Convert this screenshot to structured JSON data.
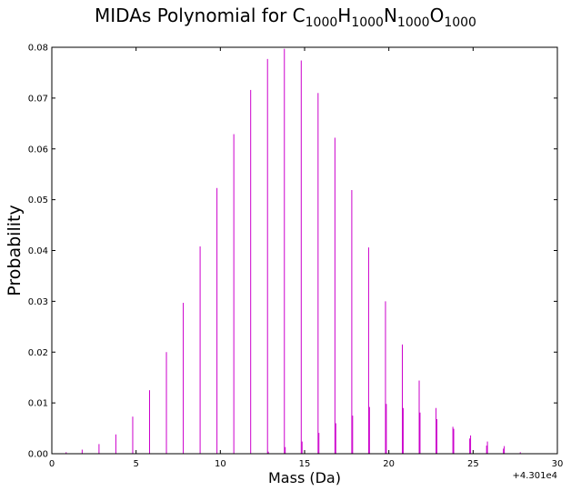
{
  "chart_data": {
    "type": "bar",
    "title": {
      "prefix": "MIDAs Polynomial for ",
      "parts": [
        {
          "el": "C",
          "n": "1000"
        },
        {
          "el": "H",
          "n": "1000"
        },
        {
          "el": "N",
          "n": "1000"
        },
        {
          "el": "O",
          "n": "1000"
        }
      ]
    },
    "xlabel": "Mass (Da)",
    "ylabel": "Probability",
    "x_offset_label": "+4.301e4",
    "xlim": [
      0,
      30
    ],
    "ylim": [
      0,
      0.08
    ],
    "xticks": [
      "0",
      "5",
      "10",
      "15",
      "20",
      "25",
      "30"
    ],
    "yticks": [
      "0.00",
      "0.01",
      "0.02",
      "0.03",
      "0.04",
      "0.05",
      "0.06",
      "0.07",
      "0.08"
    ],
    "grid": false,
    "bar_color": "#cc00cc",
    "x": [
      0.85,
      1.8,
      2.8,
      3.8,
      4.8,
      5.8,
      6.8,
      7.8,
      8.8,
      9.8,
      10.8,
      11.8,
      12.8,
      13.8,
      14.8,
      15.8,
      16.8,
      17.8,
      18.8,
      19.8,
      20.8,
      21.8,
      22.8,
      23.8,
      24.8,
      25.8,
      26.8,
      27.8,
      12.85,
      13.85,
      14.85,
      15.85,
      16.85,
      17.85,
      18.85,
      19.85,
      20.85,
      21.85,
      22.85,
      23.85,
      24.85,
      25.85,
      26.85
    ],
    "values": [
      0.0003,
      0.0008,
      0.0019,
      0.0038,
      0.0073,
      0.0125,
      0.02,
      0.0297,
      0.0408,
      0.0523,
      0.0629,
      0.0716,
      0.0777,
      0.0797,
      0.0774,
      0.071,
      0.0622,
      0.0519,
      0.0406,
      0.03,
      0.0215,
      0.0144,
      0.009,
      0.0053,
      0.003,
      0.0016,
      0.001,
      0.0003,
      0.0004,
      0.0013,
      0.0024,
      0.0041,
      0.006,
      0.0075,
      0.0092,
      0.0098,
      0.009,
      0.0081,
      0.0068,
      0.0049,
      0.0036,
      0.0024,
      0.0015
    ]
  }
}
